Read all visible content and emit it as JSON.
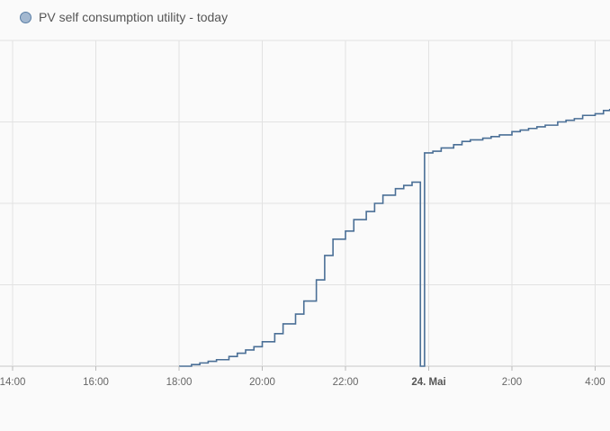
{
  "legend": {
    "label": "PV self consumption utility - today",
    "color": "#4a6f96"
  },
  "chart_data": {
    "type": "line",
    "step": true,
    "series": [
      {
        "name": "PV self consumption utility - today",
        "color": "#4a6f96",
        "points": [
          [
            18.0,
            0.0
          ],
          [
            18.3,
            0.05
          ],
          [
            18.5,
            0.1
          ],
          [
            18.7,
            0.15
          ],
          [
            18.9,
            0.2
          ],
          [
            19.2,
            0.3
          ],
          [
            19.4,
            0.4
          ],
          [
            19.6,
            0.5
          ],
          [
            19.8,
            0.6
          ],
          [
            20.0,
            0.75
          ],
          [
            20.3,
            1.0
          ],
          [
            20.5,
            1.3
          ],
          [
            20.8,
            1.6
          ],
          [
            21.0,
            2.0
          ],
          [
            21.3,
            2.65
          ],
          [
            21.5,
            3.4
          ],
          [
            21.7,
            3.9
          ],
          [
            22.0,
            4.15
          ],
          [
            22.2,
            4.5
          ],
          [
            22.5,
            4.75
          ],
          [
            22.7,
            5.0
          ],
          [
            22.9,
            5.25
          ],
          [
            23.2,
            5.45
          ],
          [
            23.4,
            5.55
          ],
          [
            23.6,
            5.65
          ],
          [
            23.8,
            0.0
          ],
          [
            23.9,
            6.55
          ],
          [
            24.1,
            6.6
          ],
          [
            24.3,
            6.7
          ],
          [
            24.6,
            6.8
          ],
          [
            24.8,
            6.9
          ],
          [
            25.0,
            6.95
          ],
          [
            25.3,
            7.0
          ],
          [
            25.5,
            7.05
          ],
          [
            25.7,
            7.1
          ],
          [
            26.0,
            7.2
          ],
          [
            26.2,
            7.25
          ],
          [
            26.4,
            7.3
          ],
          [
            26.6,
            7.35
          ],
          [
            26.8,
            7.4
          ],
          [
            27.1,
            7.5
          ],
          [
            27.3,
            7.55
          ],
          [
            27.5,
            7.6
          ],
          [
            27.7,
            7.7
          ],
          [
            28.0,
            7.75
          ],
          [
            28.2,
            7.85
          ],
          [
            28.35,
            7.9
          ]
        ]
      }
    ],
    "xlim": [
      14.0,
      28.35
    ],
    "ylim": [
      0,
      10
    ],
    "grid": true,
    "x_ticks": [
      {
        "value": 14,
        "label": "14:00"
      },
      {
        "value": 16,
        "label": "16:00"
      },
      {
        "value": 18,
        "label": "18:00"
      },
      {
        "value": 20,
        "label": "20:00"
      },
      {
        "value": 22,
        "label": "22:00"
      },
      {
        "value": 24,
        "label": "24. Mai",
        "bold": true
      },
      {
        "value": 26,
        "label": "2:00"
      },
      {
        "value": 28,
        "label": "4:00"
      }
    ],
    "y_gridlines": [
      0,
      2.5,
      5,
      7.5,
      10
    ]
  }
}
